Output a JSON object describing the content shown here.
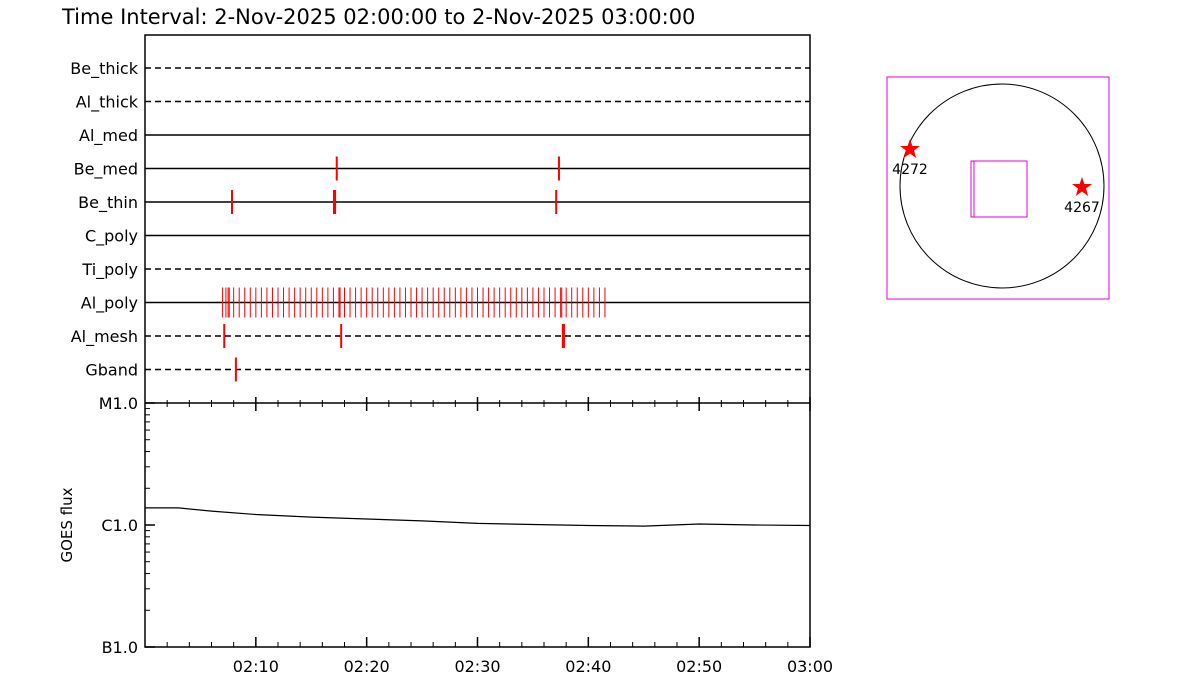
{
  "chart_data": [
    {
      "type": "timeline",
      "title": "Time Interval:  2-Nov-2025 02:00:00 to  2-Nov-2025 03:00:00",
      "xlim": [
        0,
        60
      ],
      "color": "#ff0000",
      "rows": [
        {
          "name": "Be_thick",
          "style": "dashed",
          "events": []
        },
        {
          "name": "Al_thick",
          "style": "dashed",
          "events": []
        },
        {
          "name": "Al_med",
          "style": "solid",
          "events": []
        },
        {
          "name": "Be_med",
          "style": "solid",
          "events": [
            17.3,
            37.35
          ]
        },
        {
          "name": "Be_thin",
          "style": "solid",
          "events": [
            7.85,
            17.05,
            17.15,
            37.1
          ]
        },
        {
          "name": "C_poly",
          "style": "solid",
          "events": []
        },
        {
          "name": "Ti_poly",
          "style": "dashed",
          "events": []
        },
        {
          "name": "Al_poly",
          "style": "solid",
          "events": [
            7.0,
            7.3,
            7.5,
            7.6,
            8.0,
            8.5,
            9.0,
            9.5,
            10.0,
            10.5,
            11.0,
            11.5,
            12.0,
            12.5,
            13.0,
            13.5,
            14.0,
            14.5,
            15.0,
            15.5,
            16.0,
            16.5,
            17.0,
            17.5,
            17.6,
            18.0,
            18.5,
            19.0,
            19.5,
            20.0,
            20.5,
            21.0,
            21.5,
            22.0,
            22.5,
            23.0,
            23.5,
            24.0,
            24.5,
            25.0,
            25.5,
            26.0,
            26.5,
            27.0,
            27.5,
            28.0,
            28.5,
            29.0,
            29.5,
            30.0,
            30.5,
            31.0,
            31.5,
            32.0,
            32.5,
            33.0,
            33.5,
            34.0,
            34.5,
            35.0,
            35.5,
            36.0,
            36.5,
            37.0,
            37.5,
            37.6,
            38.0,
            38.5,
            39.0,
            39.5,
            40.0,
            40.5,
            41.0,
            41.5
          ]
        },
        {
          "name": "Al_mesh",
          "style": "dashed",
          "events": [
            7.15,
            17.7,
            37.7,
            37.8
          ]
        },
        {
          "name": "Gband",
          "style": "dashed",
          "events": [
            8.2
          ]
        }
      ]
    },
    {
      "type": "line",
      "ylabel": "GOES flux",
      "log": true,
      "xlim": [
        0,
        60
      ],
      "xticks": [
        {
          "value": 10,
          "label": "02:10"
        },
        {
          "value": 20,
          "label": "02:20"
        },
        {
          "value": 30,
          "label": "02:30"
        },
        {
          "value": 40,
          "label": "02:40"
        },
        {
          "value": 50,
          "label": "02:50"
        },
        {
          "value": 60,
          "label": "03:00"
        }
      ],
      "xminorticks": [
        2,
        4,
        6,
        8,
        12,
        14,
        16,
        18,
        22,
        24,
        26,
        28,
        32,
        34,
        36,
        38,
        42,
        44,
        46,
        48,
        52,
        54,
        56,
        58
      ],
      "ylim": [
        1e-07,
        1e-05
      ],
      "yticks": [
        {
          "value": 1e-05,
          "label": "M1.0"
        },
        {
          "value": 1e-06,
          "label": "C1.0"
        },
        {
          "value": 1e-07,
          "label": "B1.0"
        }
      ],
      "yminorticks": [
        2e-07,
        3e-07,
        4e-07,
        5e-07,
        6e-07,
        7e-07,
        8e-07,
        9e-07,
        2e-06,
        3e-06,
        4e-06,
        5e-06,
        6e-06,
        7e-06,
        8e-06,
        9e-06
      ],
      "x": [
        0,
        3,
        6,
        10,
        15,
        20,
        25,
        30,
        35,
        40,
        45,
        50,
        55,
        60
      ],
      "series": [
        {
          "color": "#000000",
          "values": [
            1.38e-06,
            1.38e-06,
            1.3e-06,
            1.22e-06,
            1.16e-06,
            1.12e-06,
            1.08e-06,
            1.03e-06,
            1.01e-06,
            9.9e-07,
            9.8e-07,
            1.02e-06,
            1e-06,
            9.9e-07
          ]
        }
      ]
    }
  ],
  "disk": {
    "regions": [
      "4272",
      "4267"
    ]
  }
}
